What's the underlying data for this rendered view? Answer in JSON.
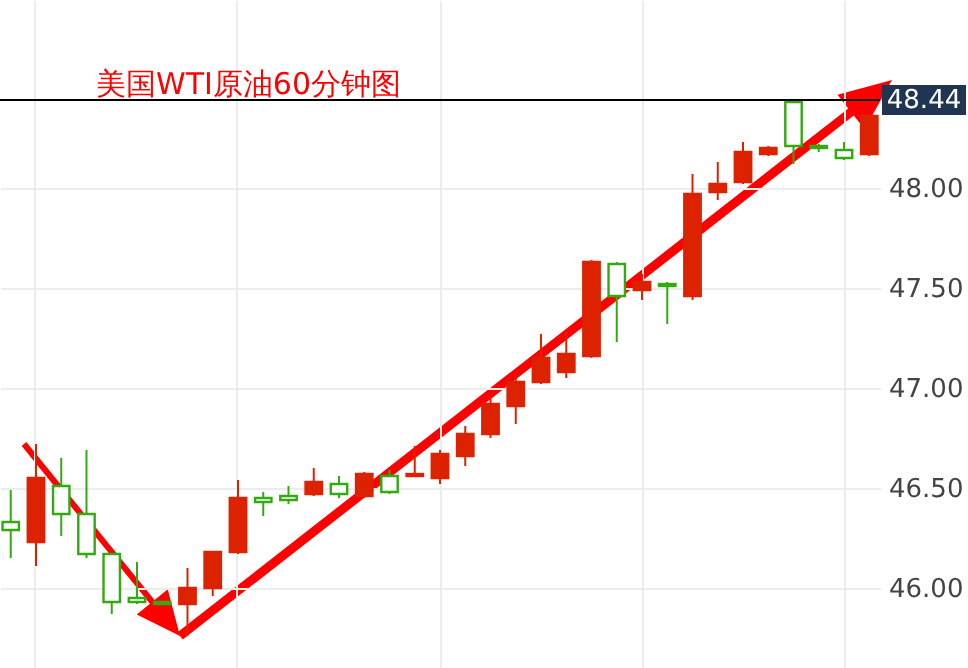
{
  "chart_data": {
    "type": "candlestick",
    "title": "美国WTI原油60分钟图",
    "categories": [
      null,
      null,
      null,
      null,
      null,
      null,
      null,
      null,
      null,
      null,
      null,
      null,
      null,
      null,
      null,
      null,
      null,
      null,
      null,
      null,
      null,
      null,
      null,
      null,
      null,
      null,
      null,
      null,
      null,
      null,
      null,
      null,
      null,
      null,
      null
    ],
    "ohlc": [
      [
        46.33,
        46.49,
        46.15,
        46.29
      ],
      [
        46.23,
        46.72,
        46.11,
        46.55
      ],
      [
        46.51,
        46.65,
        46.26,
        46.37
      ],
      [
        46.37,
        46.69,
        46.15,
        46.17
      ],
      [
        46.17,
        46.17,
        45.87,
        45.93
      ],
      [
        45.95,
        46.13,
        45.92,
        45.93
      ],
      [
        45.93,
        45.93,
        45.92,
        45.92
      ],
      [
        45.92,
        46.1,
        45.76,
        46.0
      ],
      [
        46.0,
        46.18,
        45.96,
        46.18
      ],
      [
        46.18,
        46.54,
        46.17,
        46.45
      ],
      [
        46.45,
        46.48,
        46.36,
        46.43
      ],
      [
        46.46,
        46.51,
        46.42,
        46.44
      ],
      [
        46.47,
        46.6,
        46.46,
        46.53
      ],
      [
        46.52,
        46.56,
        46.45,
        46.47
      ],
      [
        46.46,
        46.58,
        46.45,
        46.57
      ],
      [
        46.56,
        46.59,
        46.47,
        46.48
      ],
      [
        46.56,
        46.71,
        46.56,
        46.57
      ],
      [
        46.55,
        46.69,
        46.52,
        46.67
      ],
      [
        46.66,
        46.81,
        46.61,
        46.77
      ],
      [
        46.77,
        46.96,
        46.75,
        46.92
      ],
      [
        46.91,
        47.07,
        46.82,
        47.03
      ],
      [
        47.03,
        47.27,
        47.02,
        47.15
      ],
      [
        47.08,
        47.28,
        47.05,
        47.17
      ],
      [
        47.16,
        47.64,
        47.15,
        47.63
      ],
      [
        47.62,
        47.63,
        47.23,
        47.46
      ],
      [
        47.49,
        47.57,
        47.44,
        47.53
      ],
      [
        47.52,
        47.53,
        47.32,
        47.51
      ],
      [
        47.46,
        48.07,
        47.44,
        47.97
      ],
      [
        47.98,
        48.13,
        47.94,
        48.02
      ],
      [
        48.03,
        48.23,
        48.02,
        48.18
      ],
      [
        48.17,
        48.21,
        48.16,
        48.2
      ],
      [
        48.43,
        48.43,
        48.12,
        48.21
      ],
      [
        48.21,
        48.22,
        48.18,
        48.2
      ],
      [
        48.19,
        48.23,
        48.14,
        48.15
      ],
      [
        48.17,
        48.36,
        48.16,
        48.36
      ]
    ],
    "colors": [
      "#33aa11",
      "#dd2200",
      "#33aa11",
      "#33aa11",
      "#33aa11",
      "#33aa11",
      "#33aa11",
      "#dd2200",
      "#dd2200",
      "#dd2200",
      "#33aa11",
      "#33aa11",
      "#dd2200",
      "#33aa11",
      "#dd2200",
      "#33aa11",
      "#dd2200",
      "#dd2200",
      "#dd2200",
      "#dd2200",
      "#dd2200",
      "#dd2200",
      "#dd2200",
      "#dd2200",
      "#33aa11",
      "#dd2200",
      "#33aa11",
      "#dd2200",
      "#dd2200",
      "#dd2200",
      "#dd2200",
      "#33aa11",
      "#33aa11",
      "#33aa11",
      "#dd2200"
    ],
    "ylim": [
      45.6,
      48.94
    ],
    "yticks": [
      {
        "value": 46,
        "label": "46.00"
      },
      {
        "value": 46.5,
        "label": "46.50"
      },
      {
        "value": 47,
        "label": "47.00"
      },
      {
        "value": 47.5,
        "label": "47.50"
      },
      {
        "value": 48,
        "label": "48.00"
      }
    ],
    "ref_lines": [
      {
        "axis": "y",
        "value": 48.44,
        "label": "48.44",
        "color": "#000000"
      }
    ],
    "grid": true,
    "tick_labels": "y"
  }
}
